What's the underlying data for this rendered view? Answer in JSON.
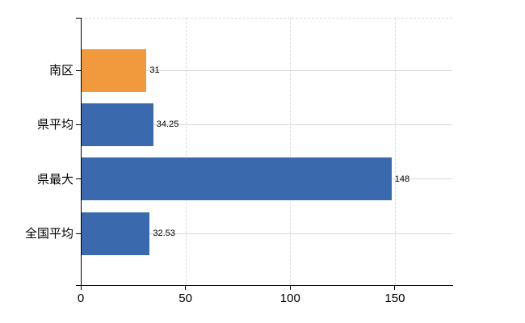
{
  "chart_data": {
    "type": "bar",
    "orientation": "horizontal",
    "title": "",
    "xlabel": "",
    "ylabel": "",
    "categories": [
      "南区",
      "県平均",
      "県最大",
      "全国平均"
    ],
    "values": [
      31,
      34.25,
      148,
      32.53
    ],
    "value_labels": [
      "31",
      "34.25",
      "148",
      "32.53"
    ],
    "bar_color_keys": [
      "orange",
      "blue",
      "blue",
      "blue"
    ],
    "x_ticks": [
      0,
      50,
      100,
      150
    ],
    "x_tick_labels": [
      "0",
      "50",
      "100",
      "150"
    ],
    "xlim": [
      0,
      177.4
    ],
    "grid": "on",
    "gridline_style": {
      "vertical": "dashed",
      "horizontal": "solid",
      "top_border": "dashed"
    },
    "legend": "none"
  },
  "colors": {
    "blue": "#3A6AAD",
    "orange": "#F0993D",
    "gridline": "#D9D9D9",
    "axis": "#000000",
    "text": "#000000",
    "background": "#FFFFFF"
  }
}
